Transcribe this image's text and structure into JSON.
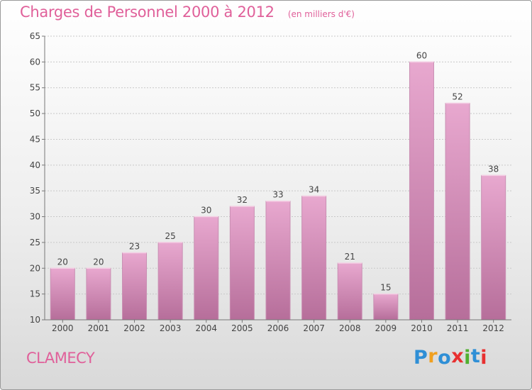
{
  "header": {
    "title": "Charges de Personnel 2000 à 2012",
    "subtitle": "(en milliers d'€)"
  },
  "footer": {
    "place_name": "CLAMECY",
    "brand": {
      "letters": [
        "P",
        "r",
        "o",
        "x",
        "i",
        "t",
        "i"
      ],
      "colors": [
        "#2f8fd6",
        "#f0a020",
        "#2f8fd6",
        "#e83030",
        "#50b030",
        "#2f8fd6",
        "#e83030"
      ]
    }
  },
  "chart_data": {
    "type": "bar",
    "title": "Charges de Personnel 2000 à 2012",
    "subtitle": "(en milliers d'€)",
    "xlabel": "",
    "ylabel": "",
    "categories": [
      "2000",
      "2001",
      "2002",
      "2003",
      "2004",
      "2005",
      "2006",
      "2007",
      "2008",
      "2009",
      "2010",
      "2011",
      "2012"
    ],
    "values": [
      20,
      20,
      23,
      25,
      30,
      32,
      33,
      34,
      21,
      15,
      60,
      52,
      38
    ],
    "data_labels": [
      "20",
      "20",
      "23",
      "25",
      "30",
      "32",
      "33",
      "34",
      "21",
      "15",
      "60",
      "52",
      "38"
    ],
    "ylim": [
      10,
      65
    ],
    "yticks": [
      10,
      15,
      20,
      25,
      30,
      35,
      40,
      45,
      50,
      55,
      60,
      65
    ],
    "grid": true,
    "legend": "none",
    "colors": {
      "bar_top": "#e8a8cf",
      "bar_bottom": "#b66e9a",
      "grid": "#c8c8c8",
      "axis": "#777777",
      "text": "#444444"
    }
  }
}
